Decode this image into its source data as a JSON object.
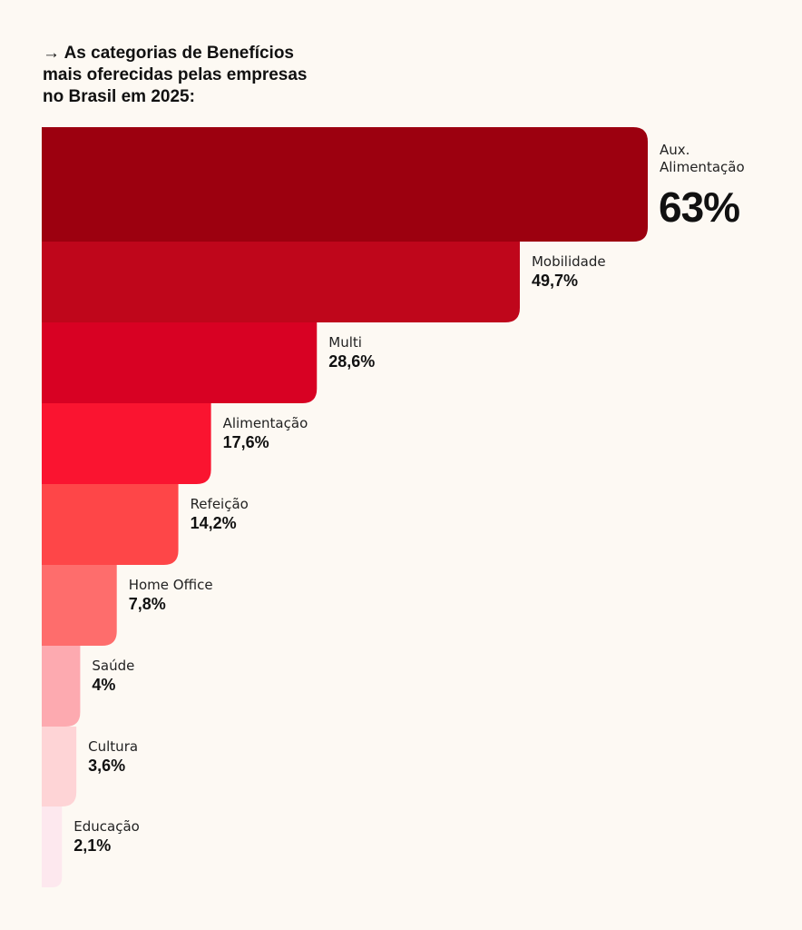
{
  "title_lines": [
    "→ As categorias de Benefícios",
    "mais oferecidas pelas empresas",
    "no Brasil em 2025:"
  ],
  "chart_data": {
    "type": "bar",
    "orientation": "horizontal",
    "title": "→ As categorias de Benefícios mais oferecidas pelas empresas no Brasil em 2025:",
    "xlabel": "",
    "ylabel": "",
    "grid": false,
    "legend": "none",
    "unit": "%",
    "categories": [
      "Aux.\nAlimentação",
      "Mobilidade",
      "Multi",
      "Alimentação",
      "Refeição",
      "Home Office",
      "Saúde",
      "Cultura",
      "Educação"
    ],
    "values": [
      63,
      49.7,
      28.6,
      17.6,
      14.2,
      7.8,
      4,
      3.6,
      2.1
    ],
    "value_labels": [
      "63%",
      "49,7%",
      "28,6%",
      "17,6%",
      "14,2%",
      "7,8%",
      "4%",
      "3,6%",
      "2,1%"
    ],
    "colors": [
      "#9c000f",
      "#bf061b",
      "#d80123",
      "#fa1430",
      "#fe4648",
      "#fe6d6c",
      "#fdaab0",
      "#fed4d6",
      "#fde8ee"
    ],
    "xlim": [
      0,
      63
    ]
  }
}
